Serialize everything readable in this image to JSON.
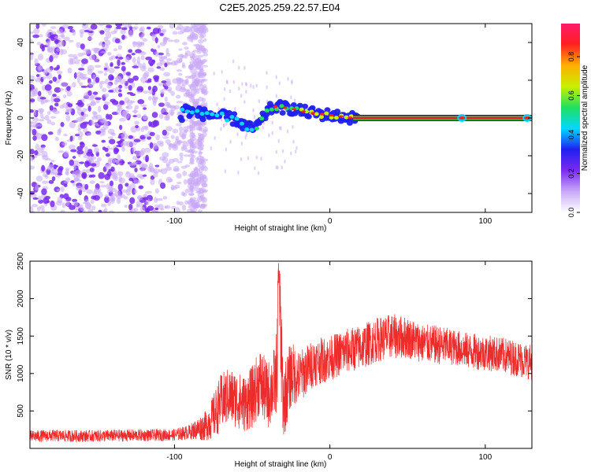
{
  "title": "C2E5.2025.259.22.57.E04",
  "colors": {
    "snr_line": "#ee2b2b",
    "scatter_purple": "#6a1ee6",
    "flat_line_red": "#e6203a",
    "flat_line_green": "#14c832"
  },
  "chart_data": [
    {
      "type": "heatmap",
      "title": "",
      "xlabel": "Height of straight line (km)",
      "ylabel": "Frequency (Hz)",
      "xlim": [
        -193,
        130
      ],
      "ylim": [
        -50,
        50
      ],
      "x_ticks": [
        -100,
        0,
        100
      ],
      "y_ticks": [
        -40,
        -20,
        0,
        20,
        40
      ],
      "colorbar": {
        "label": "Normalized spectral amplitude",
        "range": [
          0,
          0.97
        ],
        "ticks": [
          0.0,
          0.2,
          0.4,
          0.6,
          0.8
        ],
        "colormap": [
          "#ffffff",
          "#c8a8f8",
          "#7a2af0",
          "#2020f0",
          "#00d8ff",
          "#20e060",
          "#c8f000",
          "#ffb000",
          "#ff2020",
          "#ff1a6a"
        ]
      },
      "features": {
        "noise_region_x": [
          -193,
          -80
        ],
        "noise_amplitude_range": [
          0.05,
          0.25
        ],
        "signal_ridge": [
          [
            -95,
            5
          ],
          [
            -88,
            3
          ],
          [
            -80,
            2
          ],
          [
            -70,
            1
          ],
          [
            -60,
            -1
          ],
          [
            -55,
            -4
          ],
          [
            -50,
            -6
          ],
          [
            -45,
            -3
          ],
          [
            -40,
            4
          ],
          [
            -35,
            6
          ],
          [
            -25,
            5
          ],
          [
            -15,
            3
          ],
          [
            -5,
            2
          ],
          [
            5,
            1
          ],
          [
            15,
            0
          ],
          [
            130,
            0
          ]
        ],
        "steady_line_x": [
          15,
          130
        ],
        "steady_line_freq": 0,
        "steady_line_amplitude": 0.95
      }
    },
    {
      "type": "line",
      "title": "",
      "xlabel": "Height of straight line (km)",
      "ylabel": "SNR (10 * v/v)",
      "xlim": [
        -193,
        130
      ],
      "ylim": [
        0,
        2500
      ],
      "x_ticks": [
        -100,
        0,
        100
      ],
      "y_ticks": [
        500,
        1000,
        1500,
        2000,
        2500
      ],
      "series": [
        {
          "x": [
            -193,
            -180,
            -160,
            -140,
            -120,
            -100,
            -90,
            -80,
            -75,
            -70,
            -65,
            -60,
            -55,
            -50,
            -45,
            -40,
            -35,
            -32,
            -30,
            -25,
            -20,
            -10,
            0,
            10,
            20,
            30,
            40,
            50,
            60,
            70,
            80,
            90,
            100,
            110,
            120,
            130
          ],
          "values": [
            160,
            170,
            165,
            170,
            175,
            180,
            220,
            300,
            420,
            620,
            700,
            650,
            600,
            680,
            900,
            700,
            900,
            1650,
            600,
            1000,
            950,
            1150,
            1200,
            1300,
            1350,
            1450,
            1500,
            1480,
            1400,
            1380,
            1350,
            1300,
            1280,
            1250,
            1200,
            1150
          ],
          "noise_amplitude": [
            80,
            80,
            80,
            80,
            80,
            80,
            100,
            200,
            300,
            380,
            380,
            380,
            380,
            420,
            450,
            450,
            500,
            900,
            500,
            450,
            350,
            320,
            300,
            300,
            300,
            300,
            300,
            280,
            260,
            260,
            240,
            240,
            240,
            240,
            240,
            240
          ],
          "peak": {
            "x": -33,
            "y": 2480
          }
        }
      ]
    }
  ]
}
